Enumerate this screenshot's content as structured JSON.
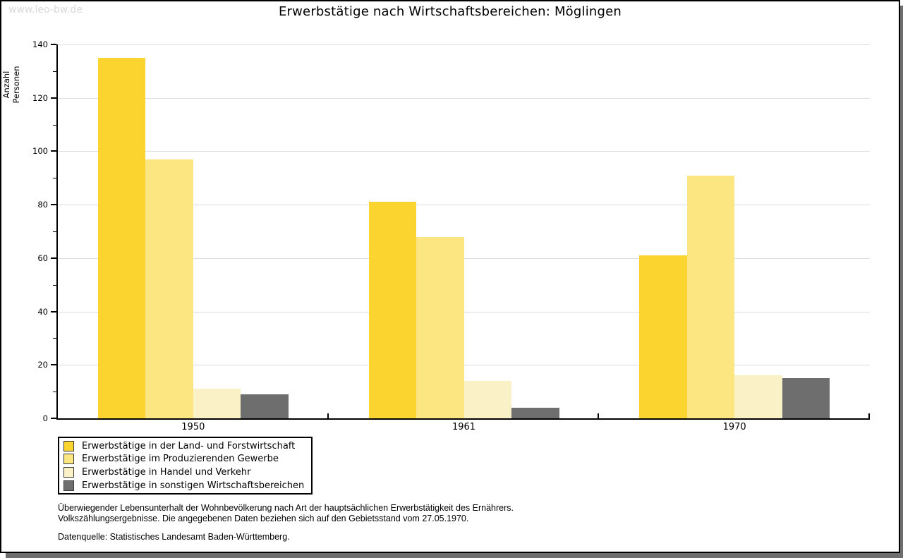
{
  "watermark": "www.leo-bw.de",
  "chart_data": {
    "type": "bar",
    "title": "Erwerbstätige nach Wirtschaftsbereichen: Möglingen",
    "categories": [
      "1950",
      "1961",
      "1970"
    ],
    "series": [
      {
        "name": "Erwerbstätige in der Land- und Forstwirtschaft",
        "color": "#FCD42F",
        "values": [
          135,
          81,
          61
        ]
      },
      {
        "name": "Erwerbstätige im Produzierenden Gewerbe",
        "color": "#FBE682",
        "values": [
          97,
          68,
          91
        ]
      },
      {
        "name": "Erwerbstätige in Handel und Verkehr",
        "color": "#FAF2C6",
        "values": [
          11,
          14,
          16
        ]
      },
      {
        "name": "Erwerbstätige in sonstigen Wirtschaftsbereichen",
        "color": "#6E6E6E",
        "values": [
          9,
          4,
          15
        ]
      }
    ],
    "ylabel": "Anzahl Personen",
    "ylim": [
      0,
      140
    ],
    "ytick_step": 20,
    "yminor_step": 10,
    "grid": true,
    "legend_position": "bottom-left"
  },
  "footer": {
    "note_line1": "Überwiegender Lebensunterhalt der Wohnbevölkerung nach Art der hauptsächlichen Erwerbstätigkeit des Ernährers.",
    "note_line2": "Volkszählungsergebnisse. Die angegebenen Daten beziehen sich auf den Gebietsstand vom 27.05.1970.",
    "source": "Datenquelle: Statistisches Landesamt Baden-Württemberg."
  },
  "colors": {
    "grid": "#DCDCDC",
    "axis": "#000000",
    "watermark": "#D9D9D9",
    "shadow": "#6E6E6E"
  }
}
